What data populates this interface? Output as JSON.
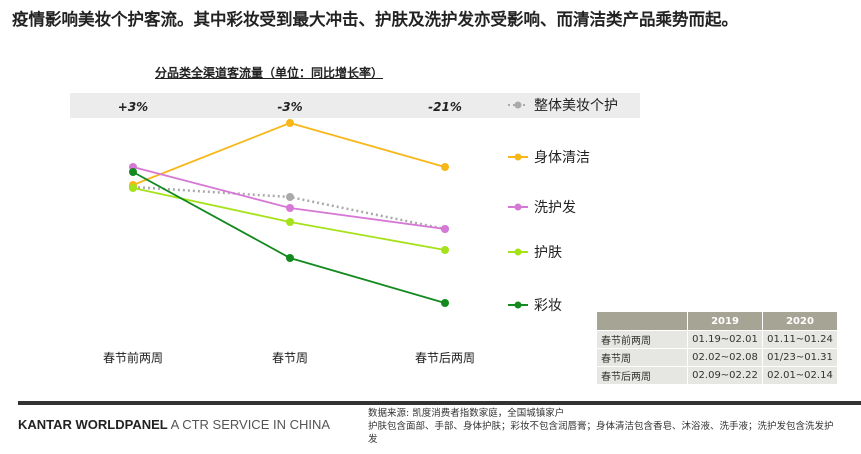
{
  "headline": "疫情影响美妆个护客流。其中彩妆受到最大冲击、护肤及洗护发亦受影响、而清洁类产品乘势而起。",
  "chart_data": {
    "type": "line",
    "title": "分品类全渠道客流量（单位：同比增长率）",
    "categories": [
      "春节前两周",
      "春节周",
      "春节后两周"
    ],
    "annotations": [
      "+3%",
      "-3%",
      "-21%"
    ],
    "ylim": [
      -10,
      100
    ],
    "yaxis_note": "relative index, no axis printed",
    "series": [
      {
        "name": "整体美妆个护",
        "color": "#aaaaaa",
        "dashed": true,
        "values": [
          56.5,
          51.5,
          35.5
        ]
      },
      {
        "name": "身体清洁",
        "color": "#f7b718",
        "values": [
          57.5,
          88.5,
          66.5
        ]
      },
      {
        "name": "洗护发",
        "color": "#d678d6",
        "values": [
          66.5,
          46,
          35.5
        ]
      },
      {
        "name": "护肤",
        "color": "#a6e21a",
        "values": [
          56,
          39,
          25
        ]
      },
      {
        "name": "彩妆",
        "color": "#128a1e",
        "values": [
          64,
          21,
          -1.5
        ]
      }
    ],
    "legend": "right"
  },
  "table": {
    "headers": [
      "",
      "2019",
      "2020"
    ],
    "rows": [
      [
        "春节前两周",
        "01.19~02.01",
        "01.11~01.24"
      ],
      [
        "春节周",
        "02.02~02.08",
        "01/23~01.31"
      ],
      [
        "春节后两周",
        "02.09~02.22",
        "02.01~02.14"
      ]
    ]
  },
  "footer": {
    "brand_bold": "KANTAR WORLDPANEL",
    "brand_rest": " A CTR SERVICE IN CHINA",
    "notes": [
      "数据来源: 凯度消费者指数家庭，全国城镇家户",
      "护肤包含面部、手部、身体护肤；彩妆不包含润唇膏；身体清洁包含香皂、沐浴液、洗手液；洗护发包含洗发护发"
    ]
  }
}
